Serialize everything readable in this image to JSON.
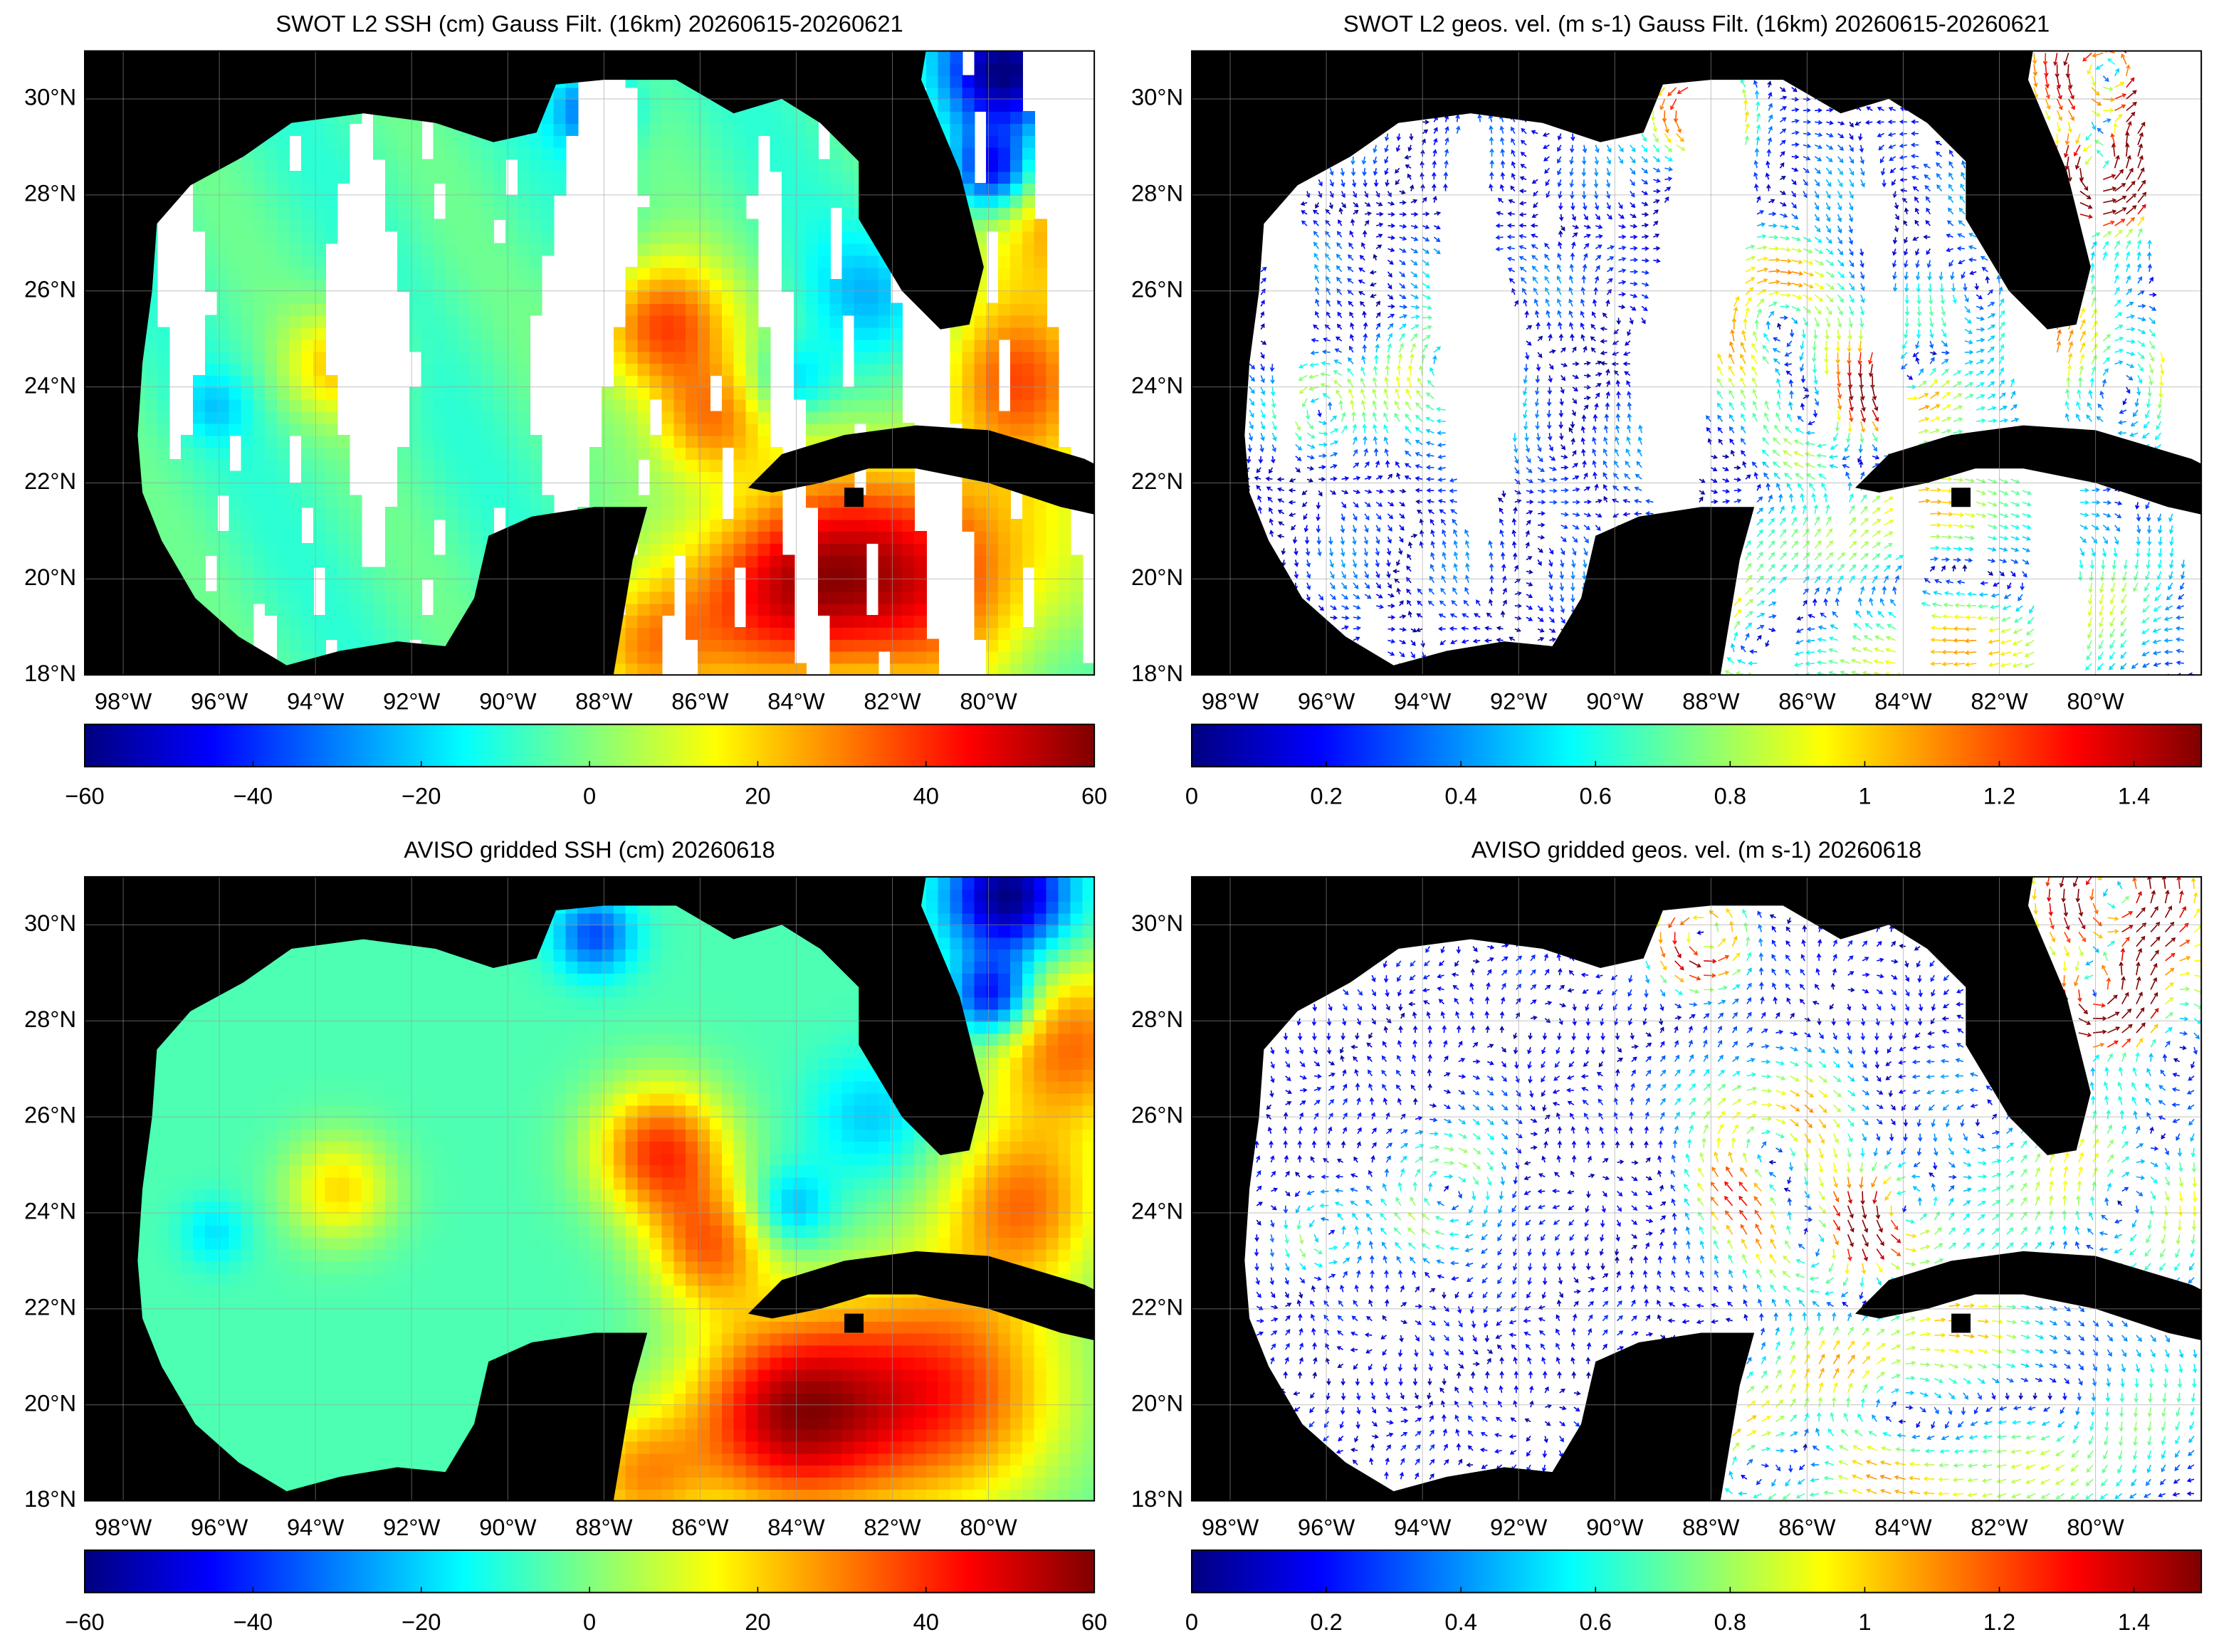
{
  "chart_data": [
    {
      "type": "swath",
      "title": "SWOT L2 SSH (cm) Gauss Filt. (16km) 20260615-20260621",
      "xlim": [
        -98.8,
        -77.8
      ],
      "ylim": [
        18,
        31
      ],
      "xticks": [
        {
          "value": -98,
          "label": "98°W"
        },
        {
          "value": -96,
          "label": "96°W"
        },
        {
          "value": -94,
          "label": "94°W"
        },
        {
          "value": -92,
          "label": "92°W"
        },
        {
          "value": -90,
          "label": "90°W"
        },
        {
          "value": -88,
          "label": "88°W"
        },
        {
          "value": -86,
          "label": "86°W"
        },
        {
          "value": -84,
          "label": "84°W"
        },
        {
          "value": -82,
          "label": "82°W"
        },
        {
          "value": -80,
          "label": "80°W"
        }
      ],
      "yticks": [
        {
          "value": 18,
          "label": "18°N"
        },
        {
          "value": 20,
          "label": "20°N"
        },
        {
          "value": 22,
          "label": "22°N"
        },
        {
          "value": 24,
          "label": "24°N"
        },
        {
          "value": 26,
          "label": "26°N"
        },
        {
          "value": 28,
          "label": "28°N"
        },
        {
          "value": 30,
          "label": "30°N"
        }
      ],
      "grid": true,
      "colorbar": {
        "colormap": "jet",
        "lim": [
          -60,
          60
        ],
        "ticks": [
          {
            "value": -60,
            "label": "−60"
          },
          {
            "value": -40,
            "label": "−40"
          },
          {
            "value": -20,
            "label": "−20"
          },
          0,
          20,
          40,
          60
        ]
      }
    },
    {
      "type": "swath_quiver",
      "title": "SWOT L2 geos. vel. (m s-1) Gauss Filt. (16km) 20260615-20260621",
      "xlim": [
        -98.8,
        -77.8
      ],
      "ylim": [
        18,
        31
      ],
      "xticks": [
        {
          "value": -98,
          "label": "98°W"
        },
        {
          "value": -96,
          "label": "96°W"
        },
        {
          "value": -94,
          "label": "94°W"
        },
        {
          "value": -92,
          "label": "92°W"
        },
        {
          "value": -90,
          "label": "90°W"
        },
        {
          "value": -88,
          "label": "88°W"
        },
        {
          "value": -86,
          "label": "86°W"
        },
        {
          "value": -84,
          "label": "84°W"
        },
        {
          "value": -82,
          "label": "82°W"
        },
        {
          "value": -80,
          "label": "80°W"
        }
      ],
      "yticks": [
        {
          "value": 18,
          "label": "18°N"
        },
        {
          "value": 20,
          "label": "20°N"
        },
        {
          "value": 22,
          "label": "22°N"
        },
        {
          "value": 24,
          "label": "24°N"
        },
        {
          "value": 26,
          "label": "26°N"
        },
        {
          "value": 28,
          "label": "28°N"
        },
        {
          "value": 30,
          "label": "30°N"
        }
      ],
      "grid": true,
      "colorbar": {
        "colormap": "jet",
        "lim": [
          0,
          1.5
        ],
        "ticks": [
          0,
          0.2,
          0.4,
          0.6,
          0.8,
          1,
          1.2,
          1.4
        ]
      }
    },
    {
      "type": "field",
      "title": "AVISO gridded SSH (cm) 20260618",
      "xlim": [
        -98.8,
        -77.8
      ],
      "ylim": [
        18,
        31
      ],
      "xticks": [
        {
          "value": -98,
          "label": "98°W"
        },
        {
          "value": -96,
          "label": "96°W"
        },
        {
          "value": -94,
          "label": "94°W"
        },
        {
          "value": -92,
          "label": "92°W"
        },
        {
          "value": -90,
          "label": "90°W"
        },
        {
          "value": -88,
          "label": "88°W"
        },
        {
          "value": -86,
          "label": "86°W"
        },
        {
          "value": -84,
          "label": "84°W"
        },
        {
          "value": -82,
          "label": "82°W"
        },
        {
          "value": -80,
          "label": "80°W"
        }
      ],
      "yticks": [
        {
          "value": 18,
          "label": "18°N"
        },
        {
          "value": 20,
          "label": "20°N"
        },
        {
          "value": 22,
          "label": "22°N"
        },
        {
          "value": 24,
          "label": "24°N"
        },
        {
          "value": 26,
          "label": "26°N"
        },
        {
          "value": 28,
          "label": "28°N"
        },
        {
          "value": 30,
          "label": "30°N"
        }
      ],
      "grid": true,
      "colorbar": {
        "colormap": "jet",
        "lim": [
          -60,
          60
        ],
        "ticks": [
          {
            "value": -60,
            "label": "−60"
          },
          {
            "value": -40,
            "label": "−40"
          },
          {
            "value": -20,
            "label": "−20"
          },
          0,
          20,
          40,
          60
        ]
      }
    },
    {
      "type": "quiver",
      "title": "AVISO gridded geos. vel. (m s-1) 20260618",
      "xlim": [
        -98.8,
        -77.8
      ],
      "ylim": [
        18,
        31
      ],
      "xticks": [
        {
          "value": -98,
          "label": "98°W"
        },
        {
          "value": -96,
          "label": "96°W"
        },
        {
          "value": -94,
          "label": "94°W"
        },
        {
          "value": -92,
          "label": "92°W"
        },
        {
          "value": -90,
          "label": "90°W"
        },
        {
          "value": -88,
          "label": "88°W"
        },
        {
          "value": -86,
          "label": "86°W"
        },
        {
          "value": -84,
          "label": "84°W"
        },
        {
          "value": -82,
          "label": "82°W"
        },
        {
          "value": -80,
          "label": "80°W"
        }
      ],
      "yticks": [
        {
          "value": 18,
          "label": "18°N"
        },
        {
          "value": 20,
          "label": "20°N"
        },
        {
          "value": 22,
          "label": "22°N"
        },
        {
          "value": 24,
          "label": "24°N"
        },
        {
          "value": 26,
          "label": "26°N"
        },
        {
          "value": 28,
          "label": "28°N"
        },
        {
          "value": 30,
          "label": "30°N"
        }
      ],
      "grid": true,
      "colorbar": {
        "colormap": "jet",
        "lim": [
          0,
          1.5
        ],
        "ticks": [
          0,
          0.2,
          0.4,
          0.6,
          0.8,
          1,
          1.2,
          1.4
        ]
      }
    }
  ]
}
